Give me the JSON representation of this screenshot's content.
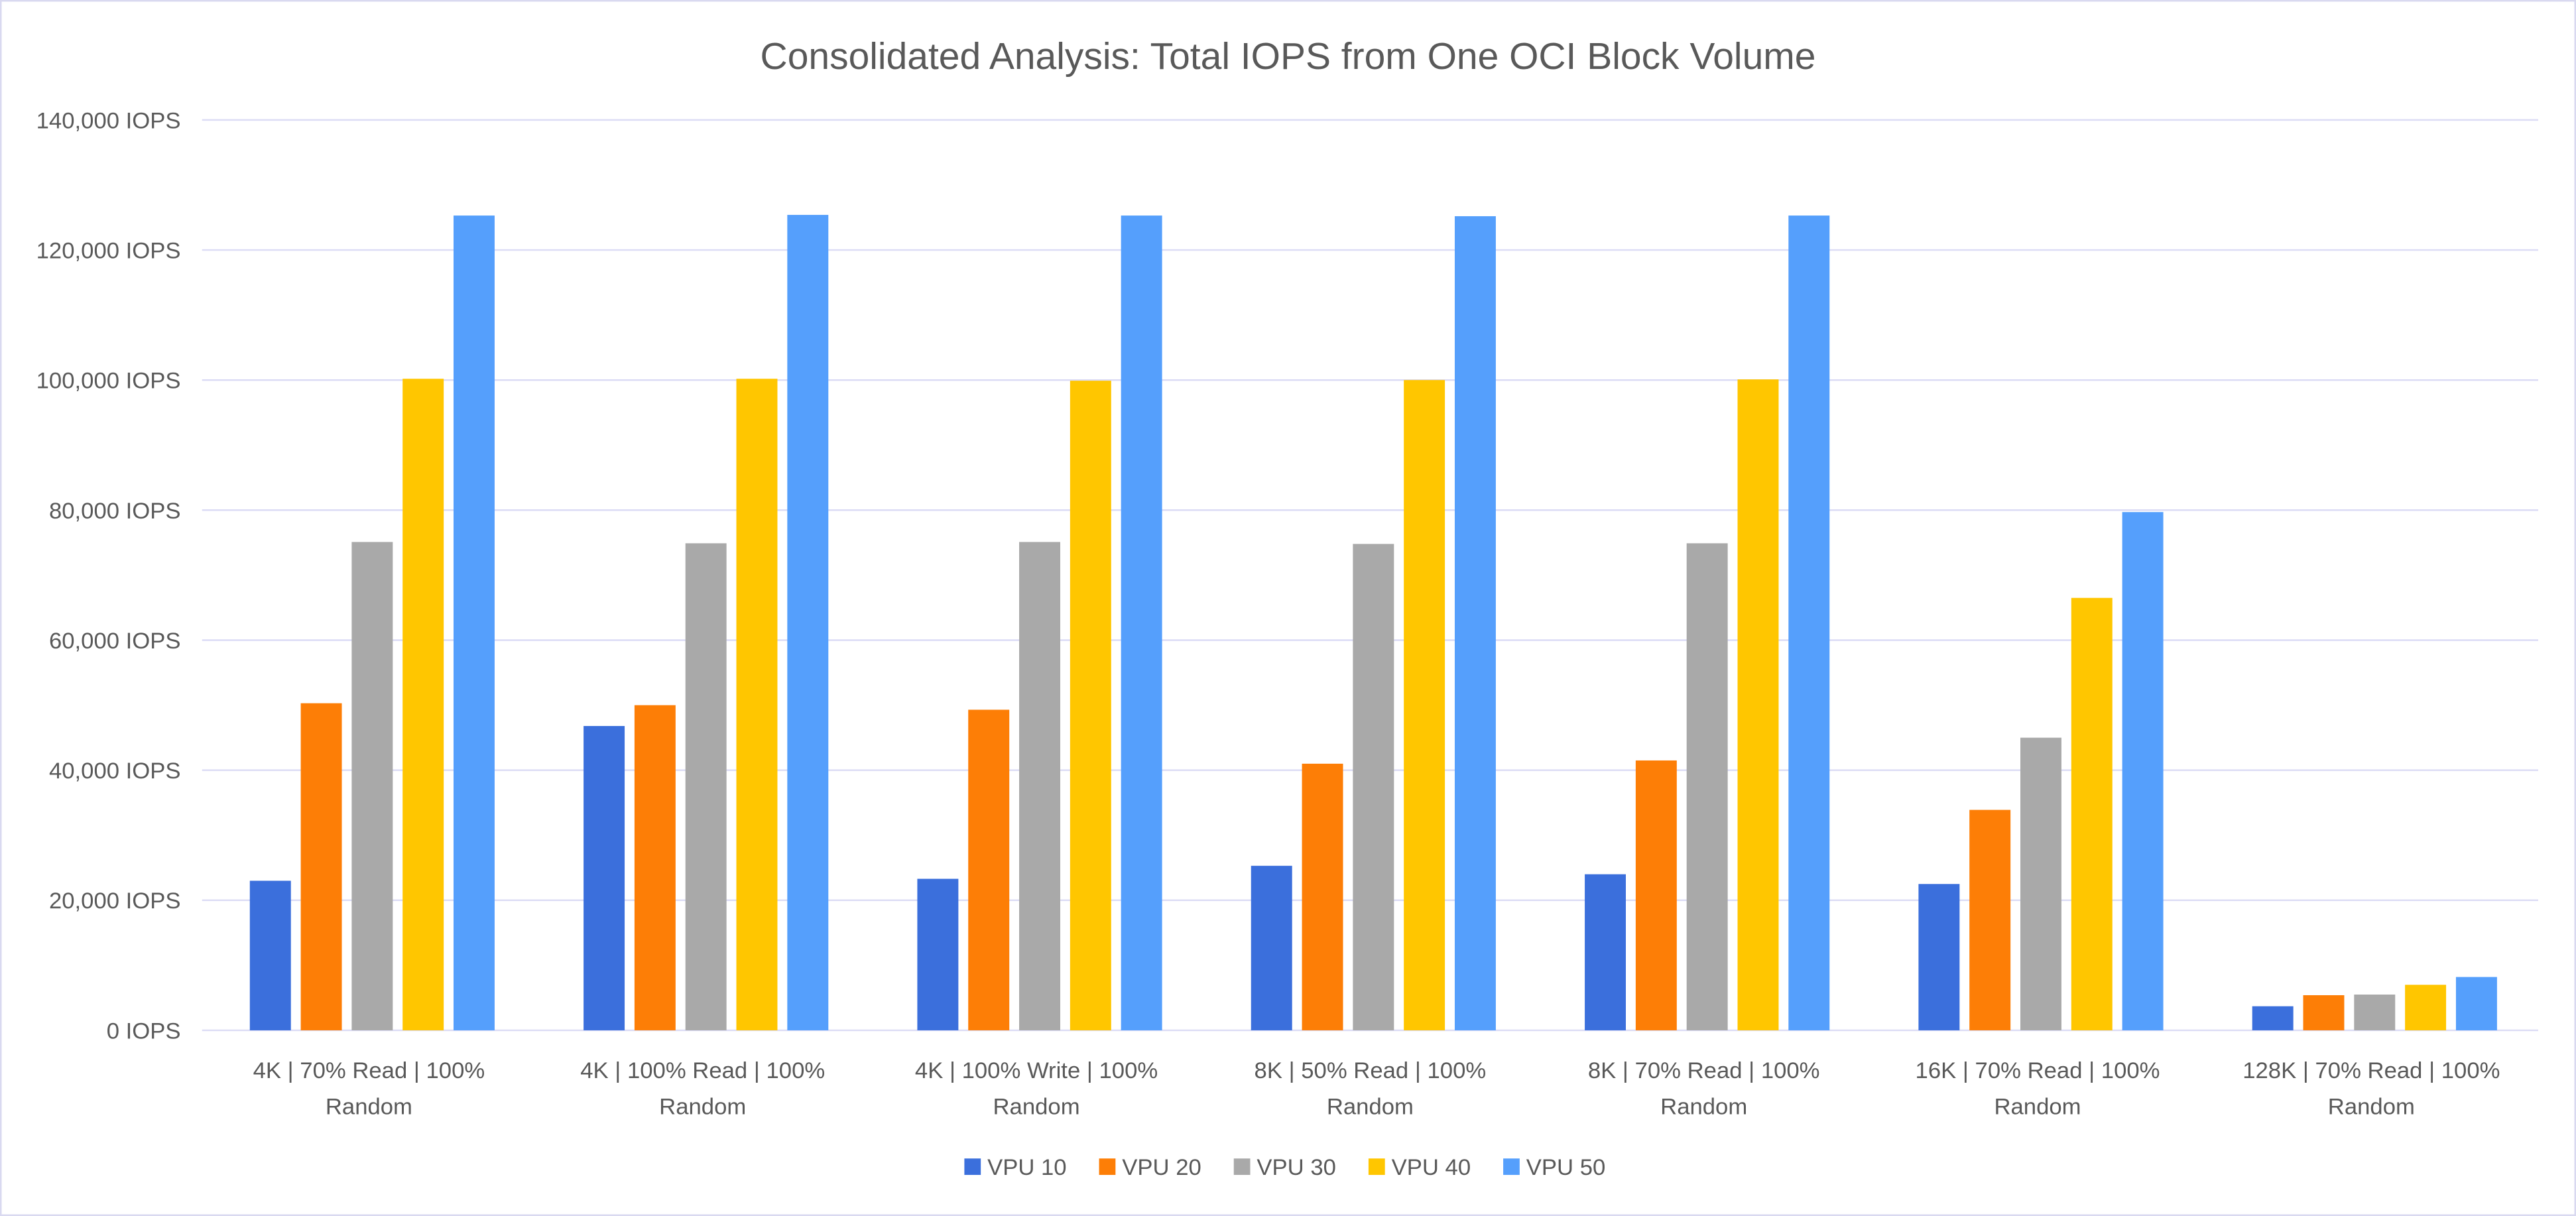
{
  "chart_data": {
    "type": "bar",
    "title": "Consolidated Analysis: Total IOPS from One OCI Block Volume",
    "xlabel": "",
    "ylabel": "",
    "ylim": [
      0,
      140000
    ],
    "y_ticks": [
      0,
      20000,
      40000,
      60000,
      80000,
      100000,
      120000,
      140000
    ],
    "y_tick_suffix": " IOPS",
    "grid": true,
    "legend_position": "bottom",
    "categories": [
      [
        "4K | 70% Read | 100%",
        "Random"
      ],
      [
        "4K | 100% Read | 100%",
        "Random"
      ],
      [
        "4K | 100% Write | 100%",
        "Random"
      ],
      [
        "8K | 50% Read | 100%",
        "Random"
      ],
      [
        "8K | 70% Read | 100%",
        "Random"
      ],
      [
        "16K | 70% Read | 100%",
        "Random"
      ],
      [
        "128K | 70% Read | 100%",
        "Random"
      ]
    ],
    "series": [
      {
        "name": "VPU 10",
        "color": "#3b6fdc",
        "values": [
          23000,
          46800,
          23300,
          25300,
          24000,
          22500,
          3700
        ]
      },
      {
        "name": "VPU 20",
        "color": "#fd7e06",
        "values": [
          50300,
          50000,
          49300,
          41000,
          41500,
          33900,
          5400
        ]
      },
      {
        "name": "VPU 30",
        "color": "#a9a9a9",
        "values": [
          75100,
          74900,
          75100,
          74800,
          74900,
          45000,
          5500
        ]
      },
      {
        "name": "VPU 40",
        "color": "#ffc600",
        "values": [
          100200,
          100200,
          99900,
          100000,
          100100,
          66500,
          7000
        ]
      },
      {
        "name": "VPU 50",
        "color": "#559ffc",
        "values": [
          125300,
          125400,
          125300,
          125200,
          125300,
          79700,
          8200
        ]
      }
    ]
  }
}
